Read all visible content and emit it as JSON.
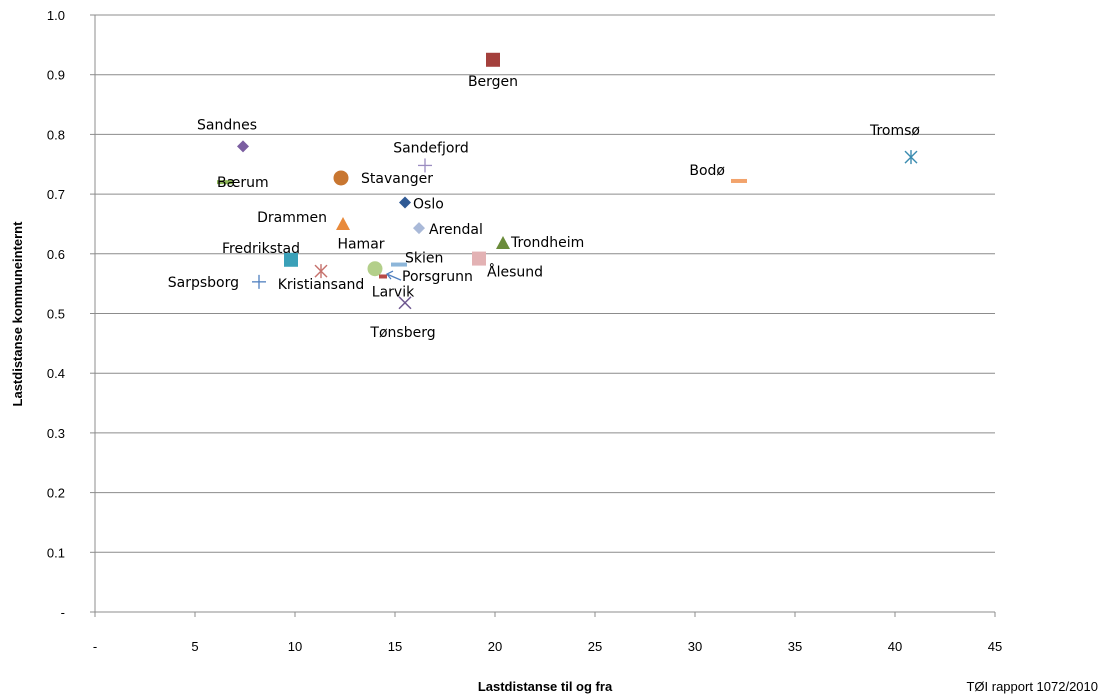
{
  "chart_data": {
    "type": "scatter",
    "xlabel": "Lastdistanse til og fra",
    "ylabel": "Lastdistanse kommuneinternt",
    "xlim": [
      0,
      45
    ],
    "ylim": [
      0,
      1.0
    ],
    "x_ticks": [
      "-",
      "5",
      "10",
      "15",
      "20",
      "25",
      "30",
      "35",
      "40",
      "45"
    ],
    "y_ticks": [
      "-",
      "0.1",
      "0.2",
      "0.3",
      "0.4",
      "0.5",
      "0.6",
      "0.7",
      "0.8",
      "0.9",
      "1.0"
    ],
    "grid": "horizontal",
    "points": [
      {
        "name": "Bergen",
        "x": 19.9,
        "y": 0.925,
        "marker": "square",
        "color": "#A4403C"
      },
      {
        "name": "Sandnes",
        "x": 7.4,
        "y": 0.78,
        "marker": "diamond",
        "color": "#7B5EA1"
      },
      {
        "name": "Sandefjord",
        "x": 16.5,
        "y": 0.748,
        "marker": "plus-thin",
        "color": "#9B8CC0"
      },
      {
        "name": "Bærum",
        "x": 6.5,
        "y": 0.72,
        "marker": "dash",
        "color": "#8CB556"
      },
      {
        "name": "Stavanger",
        "x": 12.3,
        "y": 0.727,
        "marker": "circle",
        "color": "#C87630"
      },
      {
        "name": "Bodø",
        "x": 32.2,
        "y": 0.722,
        "marker": "dash",
        "color": "#F2A36C"
      },
      {
        "name": "Tromsø",
        "x": 40.8,
        "y": 0.762,
        "marker": "asterisk",
        "color": "#3B8CB0"
      },
      {
        "name": "Drammen",
        "x": 12.4,
        "y": 0.65,
        "marker": "triangle",
        "color": "#E88A3C"
      },
      {
        "name": "Oslo",
        "x": 15.5,
        "y": 0.686,
        "marker": "diamond",
        "color": "#2F5A95"
      },
      {
        "name": "Arendal",
        "x": 16.2,
        "y": 0.643,
        "marker": "diamond",
        "color": "#A9B9D8"
      },
      {
        "name": "Trondheim",
        "x": 20.4,
        "y": 0.618,
        "marker": "triangle",
        "color": "#6A8B3A"
      },
      {
        "name": "Ålesund",
        "x": 19.2,
        "y": 0.592,
        "marker": "square",
        "color": "#E3B2B4"
      },
      {
        "name": "Fredrikstad",
        "x": 9.8,
        "y": 0.59,
        "marker": "square",
        "color": "#3AA0B8"
      },
      {
        "name": "Hamar",
        "x": 14.0,
        "y": 0.575,
        "marker": "circle",
        "color": "#B3CF8A"
      },
      {
        "name": "Skien",
        "x": 15.2,
        "y": 0.582,
        "marker": "dash",
        "color": "#8DB6D9"
      },
      {
        "name": "Kristiansand",
        "x": 11.3,
        "y": 0.571,
        "marker": "asterisk",
        "color": "#C6716C"
      },
      {
        "name": "Sarpsborg",
        "x": 8.2,
        "y": 0.553,
        "marker": "plus",
        "color": "#4F7FBF"
      },
      {
        "name": "Larvik",
        "x": 14.4,
        "y": 0.562,
        "marker": "dash-small",
        "color": "#B84B48"
      },
      {
        "name": "Porsgrunn",
        "x": 14.6,
        "y": 0.566,
        "marker": "arrow",
        "color": "#4F7FBF"
      },
      {
        "name": "Tønsberg",
        "x": 15.5,
        "y": 0.518,
        "marker": "x",
        "color": "#6E5790"
      }
    ]
  },
  "footer": {
    "credit": "TØI rapport 1072/2010"
  }
}
